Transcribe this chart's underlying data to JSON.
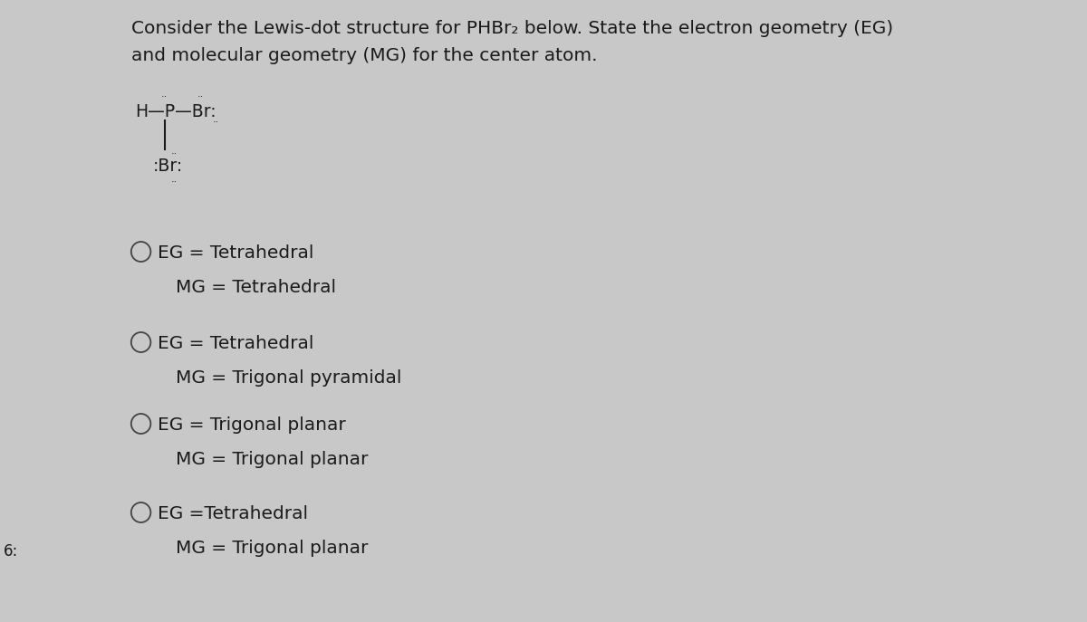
{
  "background_color": "#c8c8c8",
  "title_line1": "Consider the Lewis-dot structure for PHBr₂ below. State the electron geometry (EG)",
  "title_line2": "and molecular geometry (MG) for the center atom.",
  "title_fontsize": 14.5,
  "options": [
    {
      "eg": "EG = Tetrahedral",
      "mg": "MG = Tetrahedral"
    },
    {
      "eg": "EG = Tetrahedral",
      "mg": "MG = Trigonal pyramidal"
    },
    {
      "eg": "EG = Trigonal planar",
      "mg": "MG = Trigonal planar"
    },
    {
      "eg": "EG =Tetrahedral",
      "mg": "MG = Trigonal planar"
    }
  ],
  "option_fontsize": 14.5,
  "text_color": "#1a1a1a",
  "left_label": "6:"
}
